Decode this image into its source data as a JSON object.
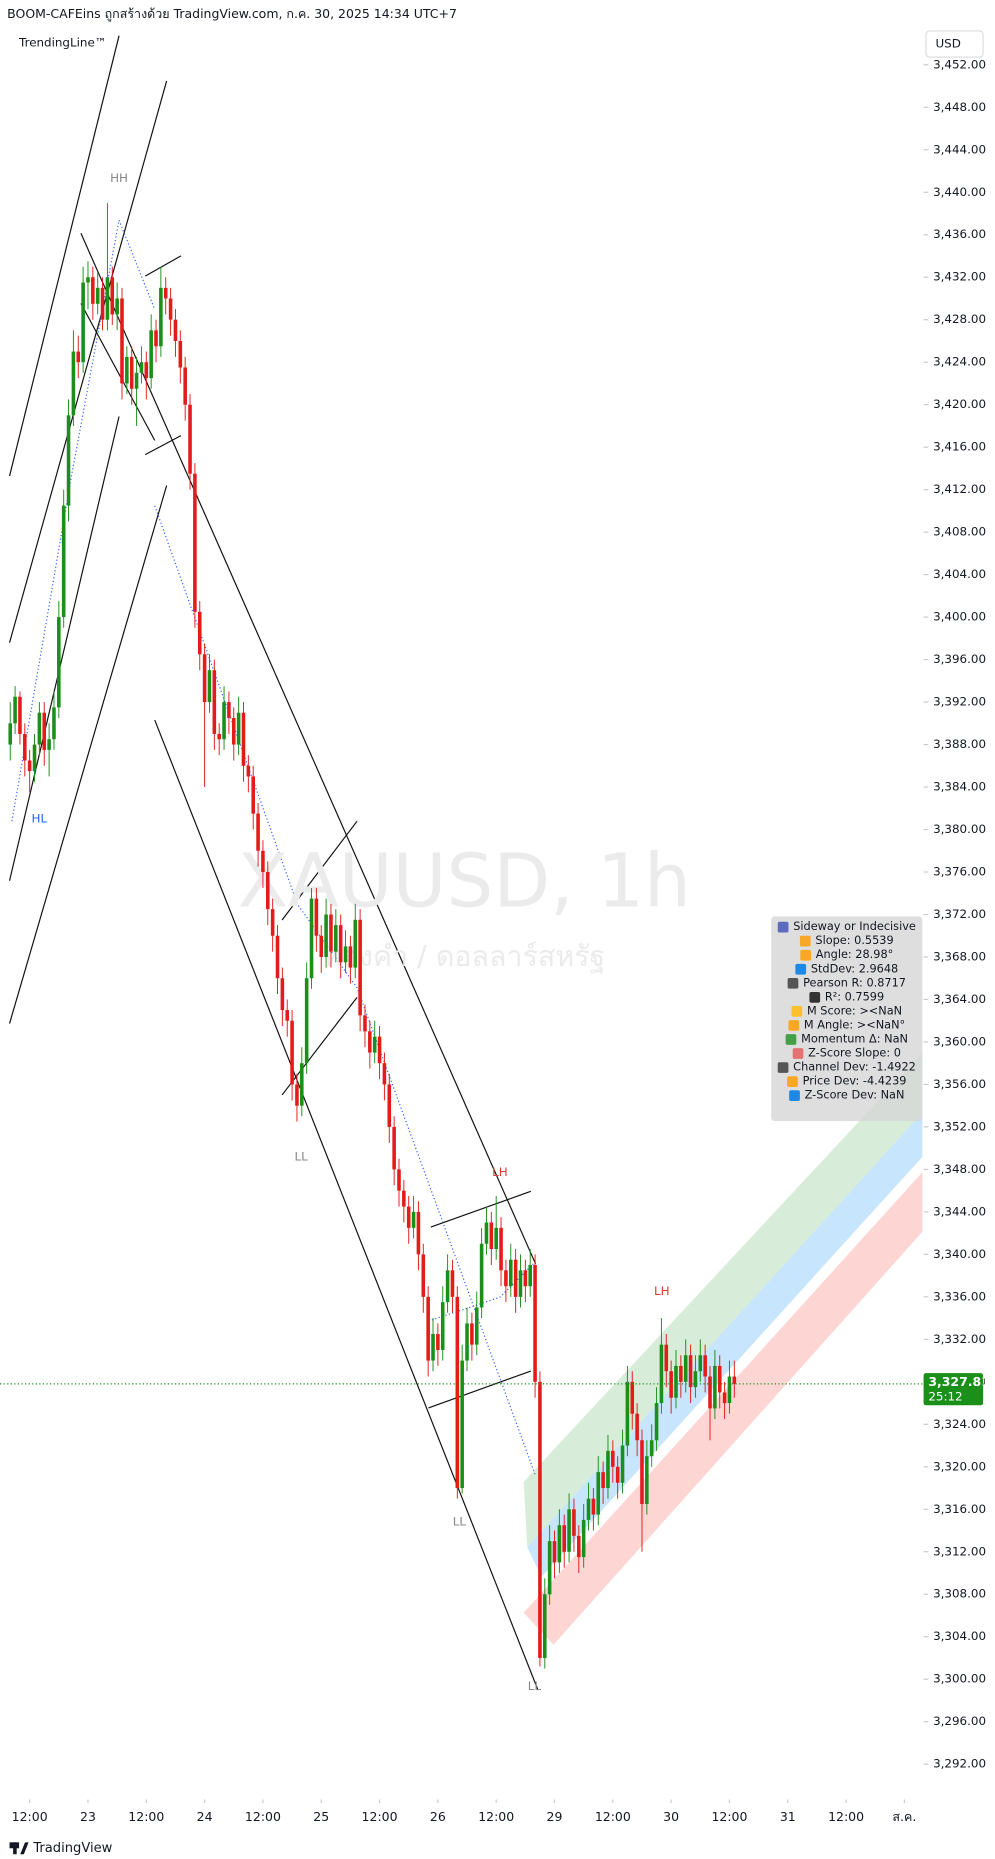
{
  "header": {
    "title": "BOOM-CAFEins ถูกสร้างด้วย TradingView.com, ก.ค. 30, 2025 14:34 UTC+7",
    "indicator": "TrendingLine™",
    "currency": "USD"
  },
  "chart_data": {
    "type": "candlestick",
    "watermark": "XAUUSD, 1h",
    "watermark_subtitle": "ทองคำ / ดอลลาร์สหรัฐ",
    "up_color": "#1a8f1a",
    "down_color": "#e31b1b",
    "ohlc": [
      [
        3388,
        3392,
        3386.5,
        3390
      ],
      [
        3390,
        3393.5,
        3389,
        3392.5
      ],
      [
        3392.5,
        3393,
        3388,
        3389
      ],
      [
        3389,
        3390,
        3385,
        3386.5
      ],
      [
        3386.5,
        3387.5,
        3383.5,
        3385.5
      ],
      [
        3385.5,
        3389,
        3384.5,
        3388
      ],
      [
        3388,
        3392,
        3387,
        3391
      ],
      [
        3391,
        3392,
        3386,
        3387.5
      ],
      [
        3387.5,
        3390,
        3385,
        3388.5
      ],
      [
        3388.5,
        3393,
        3387.5,
        3391.5
      ],
      [
        3391.5,
        3401.5,
        3390.5,
        3400
      ],
      [
        3400,
        3412,
        3399,
        3410.5
      ],
      [
        3410.5,
        3420.5,
        3409,
        3419
      ],
      [
        3419,
        3427,
        3418,
        3425
      ],
      [
        3425,
        3426.5,
        3422.5,
        3424
      ],
      [
        3424,
        3433,
        3423,
        3431.5
      ],
      [
        3431.5,
        3433.5,
        3429,
        3432
      ],
      [
        3432,
        3433,
        3428,
        3429.5
      ],
      [
        3429.5,
        3432.5,
        3428.5,
        3431
      ],
      [
        3431,
        3432,
        3427,
        3428
      ],
      [
        3428,
        3439,
        3427,
        3432
      ],
      [
        3432,
        3433,
        3427.5,
        3428.5
      ],
      [
        3428.5,
        3431.5,
        3427,
        3430
      ],
      [
        3430,
        3431,
        3420.5,
        3422
      ],
      [
        3422,
        3425.5,
        3421,
        3424.5
      ],
      [
        3424.5,
        3425.5,
        3420,
        3421.5
      ],
      [
        3421.5,
        3424.5,
        3418,
        3423
      ],
      [
        3423,
        3425.5,
        3422,
        3424
      ],
      [
        3424,
        3425,
        3420.5,
        3422.5
      ],
      [
        3422.5,
        3428.5,
        3421.5,
        3427
      ],
      [
        3427,
        3428,
        3424,
        3425.5
      ],
      [
        3425.5,
        3433,
        3424.5,
        3431
      ],
      [
        3431,
        3432,
        3428.5,
        3430
      ],
      [
        3430,
        3431,
        3426.5,
        3428
      ],
      [
        3428,
        3429,
        3424.5,
        3426
      ],
      [
        3426,
        3427,
        3422,
        3423.5
      ],
      [
        3423.5,
        3424.5,
        3418.5,
        3420
      ],
      [
        3420,
        3421,
        3412,
        3413.5
      ],
      [
        3413.5,
        3414.5,
        3399,
        3400.5
      ],
      [
        3400.5,
        3401.5,
        3395,
        3396.5
      ],
      [
        3396.5,
        3397.5,
        3384,
        3392
      ],
      [
        3392,
        3396.5,
        3391,
        3395
      ],
      [
        3395,
        3396,
        3387.5,
        3389
      ],
      [
        3389,
        3390,
        3387,
        3388.5
      ],
      [
        3388.5,
        3393.5,
        3387.5,
        3392
      ],
      [
        3392,
        3393,
        3389,
        3390.5
      ],
      [
        3390.5,
        3391.5,
        3386.5,
        3388
      ],
      [
        3388,
        3392.5,
        3387,
        3391
      ],
      [
        3391,
        3392,
        3384.5,
        3386
      ],
      [
        3386,
        3387,
        3383.5,
        3385
      ],
      [
        3385,
        3386,
        3380,
        3381.5
      ],
      [
        3381.5,
        3382.5,
        3376.5,
        3378
      ],
      [
        3378,
        3379,
        3374.5,
        3376
      ],
      [
        3376,
        3377,
        3371,
        3372.5
      ],
      [
        3372.5,
        3373.5,
        3368.5,
        3370
      ],
      [
        3370,
        3371,
        3364.5,
        3366
      ],
      [
        3366,
        3367,
        3361.5,
        3363
      ],
      [
        3363,
        3364,
        3360.5,
        3362
      ],
      [
        3362,
        3363,
        3354.5,
        3356
      ],
      [
        3356,
        3357,
        3352.5,
        3354
      ],
      [
        3354,
        3359.5,
        3353,
        3358
      ],
      [
        3358,
        3367.5,
        3357,
        3366
      ],
      [
        3366,
        3374.5,
        3365,
        3373.5
      ],
      [
        3373.5,
        3374.5,
        3368.5,
        3370
      ],
      [
        3370,
        3371,
        3366.5,
        3368
      ],
      [
        3368,
        3373.5,
        3367,
        3372
      ],
      [
        3372,
        3373,
        3367,
        3368.5
      ],
      [
        3368.5,
        3372.5,
        3367.5,
        3371
      ],
      [
        3371,
        3372,
        3366,
        3367.5
      ],
      [
        3367.5,
        3370.5,
        3366.5,
        3369
      ],
      [
        3369,
        3370,
        3365.5,
        3367
      ],
      [
        3367,
        3373,
        3366,
        3371.5
      ],
      [
        3371.5,
        3372.5,
        3361,
        3362.5
      ],
      [
        3362.5,
        3363.5,
        3359.5,
        3361
      ],
      [
        3361,
        3362,
        3357.5,
        3359
      ],
      [
        3359,
        3362,
        3358,
        3360.5
      ],
      [
        3360.5,
        3361.5,
        3356.5,
        3358
      ],
      [
        3358,
        3359,
        3354.5,
        3356
      ],
      [
        3356,
        3357,
        3350.5,
        3352
      ],
      [
        3352,
        3353,
        3346.5,
        3348
      ],
      [
        3348,
        3349,
        3344.5,
        3346
      ],
      [
        3346,
        3347,
        3343,
        3344.5
      ],
      [
        3344.5,
        3345.5,
        3341,
        3342.5
      ],
      [
        3342.5,
        3345.5,
        3341.5,
        3344
      ],
      [
        3344,
        3345,
        3338.5,
        3340
      ],
      [
        3340,
        3341,
        3334.5,
        3336
      ],
      [
        3336,
        3337,
        3328.5,
        3330
      ],
      [
        3330,
        3334,
        3329,
        3332.5
      ],
      [
        3332.5,
        3333.5,
        3329.5,
        3331
      ],
      [
        3331,
        3337,
        3330,
        3335.5
      ],
      [
        3335.5,
        3340,
        3334.5,
        3338.5
      ],
      [
        3338.5,
        3339.5,
        3334.5,
        3336
      ],
      [
        3336,
        3337,
        3317,
        3318
      ],
      [
        3318,
        3331.5,
        3317.5,
        3330
      ],
      [
        3330,
        3335,
        3329,
        3333.5
      ],
      [
        3333.5,
        3334.5,
        3330,
        3331.5
      ],
      [
        3331.5,
        3336.5,
        3330.5,
        3335
      ],
      [
        3335,
        3342.5,
        3334,
        3341
      ],
      [
        3341,
        3344.5,
        3340,
        3343
      ],
      [
        3343,
        3344,
        3339,
        3340.5
      ],
      [
        3340.5,
        3345.5,
        3339.5,
        3342.5
      ],
      [
        3342.5,
        3343.5,
        3337,
        3338.5
      ],
      [
        3338.5,
        3339.5,
        3335.5,
        3337
      ],
      [
        3337,
        3341,
        3336,
        3339.5
      ],
      [
        3339.5,
        3340.5,
        3334.5,
        3336
      ],
      [
        3336,
        3340,
        3335,
        3338.5
      ],
      [
        3338.5,
        3339.5,
        3335.5,
        3337
      ],
      [
        3337,
        3340.5,
        3336,
        3339
      ],
      [
        3339,
        3340,
        3326.5,
        3328
      ],
      [
        3328,
        3329,
        3301.2,
        3302
      ],
      [
        3302,
        3309.5,
        3301,
        3308
      ],
      [
        3308,
        3314.5,
        3307,
        3313
      ],
      [
        3313,
        3314,
        3309.5,
        3311
      ],
      [
        3311,
        3316,
        3310,
        3314.5
      ],
      [
        3314.5,
        3315.5,
        3310.5,
        3312
      ],
      [
        3312,
        3317.5,
        3311,
        3316
      ],
      [
        3316,
        3317,
        3312,
        3313.5
      ],
      [
        3313.5,
        3314.5,
        3310,
        3311.5
      ],
      [
        3311.5,
        3316.5,
        3310.5,
        3315
      ],
      [
        3315,
        3318.5,
        3314,
        3317
      ],
      [
        3317,
        3318,
        3314,
        3315.5
      ],
      [
        3315.5,
        3321,
        3314.5,
        3319.5
      ],
      [
        3319.5,
        3320.5,
        3316.5,
        3318
      ],
      [
        3318,
        3323,
        3317,
        3321.5
      ],
      [
        3321.5,
        3322.5,
        3318.5,
        3320
      ],
      [
        3320,
        3321,
        3317,
        3318.5
      ],
      [
        3318.5,
        3323.5,
        3317.5,
        3322
      ],
      [
        3322,
        3329.5,
        3321,
        3328
      ],
      [
        3328,
        3329,
        3323.5,
        3325
      ],
      [
        3325,
        3326,
        3321,
        3322.5
      ],
      [
        3322.5,
        3323.5,
        3312,
        3316.5
      ],
      [
        3316.5,
        3322.5,
        3315.5,
        3321
      ],
      [
        3321,
        3324,
        3320,
        3322.5
      ],
      [
        3322.5,
        3327.5,
        3321.5,
        3326
      ],
      [
        3326,
        3334,
        3325,
        3331.5
      ],
      [
        3331.5,
        3332.5,
        3327.5,
        3329
      ],
      [
        3329,
        3330,
        3325,
        3326.5
      ],
      [
        3326.5,
        3331,
        3325.5,
        3329.5
      ],
      [
        3329.5,
        3330.5,
        3326.5,
        3328
      ],
      [
        3328,
        3332,
        3327,
        3330.5
      ],
      [
        3330.5,
        3331.5,
        3326,
        3327.5
      ],
      [
        3327.5,
        3330.5,
        3326.5,
        3329
      ],
      [
        3329,
        3332,
        3328,
        3330.5
      ],
      [
        3330.5,
        3331.5,
        3327,
        3328.5
      ],
      [
        3328.5,
        3329.5,
        3322.5,
        3325.5
      ],
      [
        3325.5,
        3331,
        3324.5,
        3329.5
      ],
      [
        3329.5,
        3330.5,
        3325.5,
        3327
      ],
      [
        3327,
        3328,
        3324.5,
        3326
      ],
      [
        3326,
        3330,
        3325,
        3328.5
      ],
      [
        3328.5,
        3330,
        3326.5,
        3327.81
      ]
    ],
    "xlim": [
      -2.1,
      187.7
    ],
    "xticks": [
      {
        "value": 4,
        "label": "12:00"
      },
      {
        "value": 16,
        "label": "23"
      },
      {
        "value": 28,
        "label": "12:00"
      },
      {
        "value": 40,
        "label": "24"
      },
      {
        "value": 52,
        "label": "12:00"
      },
      {
        "value": 64,
        "label": "25"
      },
      {
        "value": 76,
        "label": "12:00"
      },
      {
        "value": 88,
        "label": "26"
      },
      {
        "value": 100,
        "label": "12:00"
      },
      {
        "value": 112,
        "label": "29"
      },
      {
        "value": 124,
        "label": "12:00"
      },
      {
        "value": 136,
        "label": "30"
      },
      {
        "value": 148,
        "label": "12:00"
      },
      {
        "value": 160,
        "label": "31"
      },
      {
        "value": 172,
        "label": "12:00"
      },
      {
        "value": 184,
        "label": "ส.ค."
      }
    ],
    "ylim": [
      3288.9,
      3455.3
    ],
    "yticks": [
      {
        "value": 3292,
        "label": "3,292.00"
      },
      {
        "value": 3296,
        "label": "3,296.00"
      },
      {
        "value": 3300,
        "label": "3,300.00"
      },
      {
        "value": 3304,
        "label": "3,304.00"
      },
      {
        "value": 3308,
        "label": "3,308.00"
      },
      {
        "value": 3312,
        "label": "3,312.00"
      },
      {
        "value": 3316,
        "label": "3,316.00"
      },
      {
        "value": 3320,
        "label": "3,320.00"
      },
      {
        "value": 3324,
        "label": "3,324.00"
      },
      {
        "value": 3328,
        "label": "3,328.00"
      },
      {
        "value": 3332,
        "label": "3,332.00"
      },
      {
        "value": 3336,
        "label": "3,336.00"
      },
      {
        "value": 3340,
        "label": "3,340.00"
      },
      {
        "value": 3344,
        "label": "3,344.00"
      },
      {
        "value": 3348,
        "label": "3,348.00"
      },
      {
        "value": 3352,
        "label": "3,352.00"
      },
      {
        "value": 3356,
        "label": "3,356.00"
      },
      {
        "value": 3360,
        "label": "3,360.00"
      },
      {
        "value": 3364,
        "label": "3,364.00"
      },
      {
        "value": 3368,
        "label": "3,368.00"
      },
      {
        "value": 3372,
        "label": "3,372.00"
      },
      {
        "value": 3376,
        "label": "3,376.00"
      },
      {
        "value": 3380,
        "label": "3,380.00"
      },
      {
        "value": 3384,
        "label": "3,384.00"
      },
      {
        "value": 3388,
        "label": "3,388.00"
      },
      {
        "value": 3392,
        "label": "3,392.00"
      },
      {
        "value": 3396,
        "label": "3,396.00"
      },
      {
        "value": 3400,
        "label": "3,400.00"
      },
      {
        "value": 3404,
        "label": "3,404.00"
      },
      {
        "value": 3408,
        "label": "3,408.00"
      },
      {
        "value": 3412,
        "label": "3,412.00"
      },
      {
        "value": 3416,
        "label": "3,416.00"
      },
      {
        "value": 3420,
        "label": "3,420.00"
      },
      {
        "value": 3424,
        "label": "3,424.00"
      },
      {
        "value": 3428,
        "label": "3,428.00"
      },
      {
        "value": 3432,
        "label": "3,432.00"
      },
      {
        "value": 3436,
        "label": "3,436.00"
      },
      {
        "value": 3440,
        "label": "3,440.00"
      },
      {
        "value": 3444,
        "label": "3,444.00"
      },
      {
        "value": 3448,
        "label": "3,448.00"
      },
      {
        "value": 3452,
        "label": "3,452.00"
      }
    ],
    "last_price": {
      "value": 3327.81,
      "label": "3,327.81"
    },
    "countdown": "25:12",
    "annotations": [
      "HH",
      "HL",
      "LL",
      "LH",
      "LL",
      "LL",
      "LH"
    ],
    "indicator_panel": [
      "Sideway or Indecisive",
      "Slope: 0.5539",
      "Angle: 28.98°",
      "StdDev: 2.9648",
      "Pearson R: 0.8717",
      "R²: 0.7599",
      "M Score: ><NaN",
      "M Angle: ><NaN°",
      "Momentum Δ: NaN",
      "Z-Score Slope: 0",
      "Channel Dev: -1.4922",
      "Price Dev: -4.4239",
      "Z-Score Dev: NaN"
    ]
  },
  "footer": {
    "brand": "TradingView"
  }
}
